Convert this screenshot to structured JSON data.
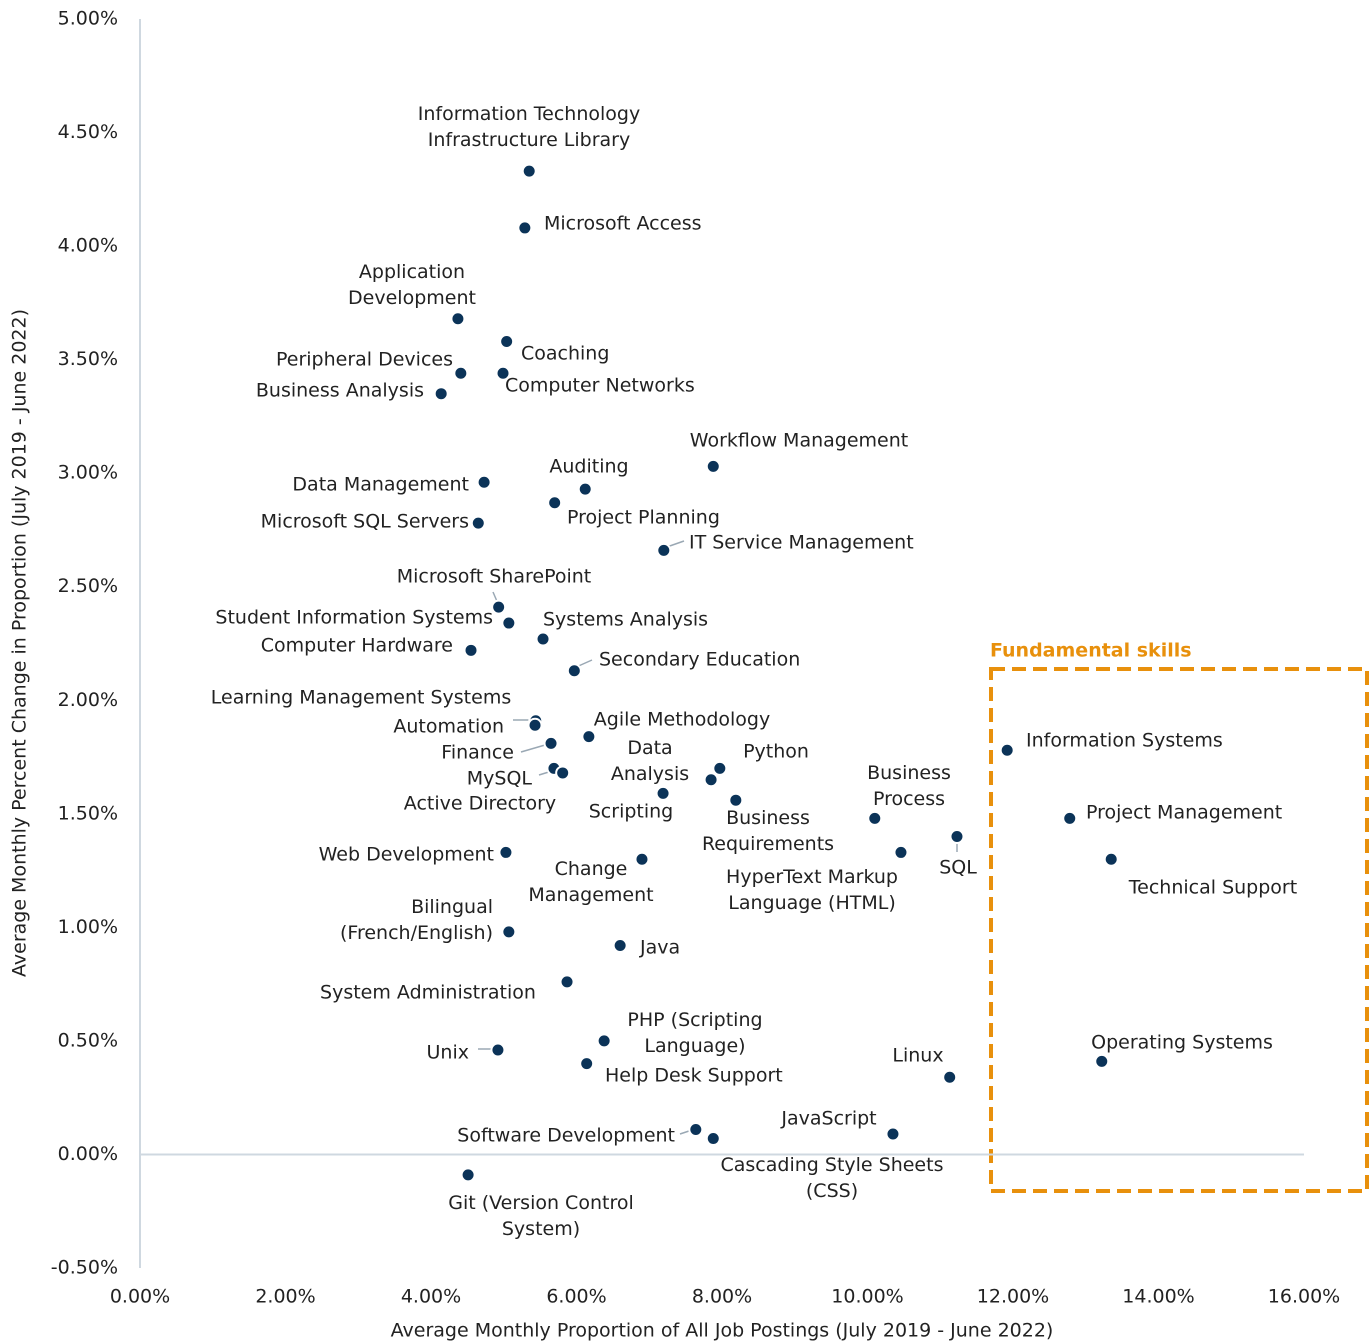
{
  "chart_data": {
    "type": "scatter",
    "xlabel": "Average Monthly Proportion of All Job Postings (July 2019 - June 2022)",
    "ylabel": "Average Monthly Percent Change in Proportion (July 2019 - June 2022)",
    "annotation": {
      "text": "Fundamental skills",
      "color": "#e8900c"
    },
    "color": "#0b3358",
    "xlim": [
      0,
      16
    ],
    "ylim": [
      -0.5,
      5
    ],
    "xticks": [
      {
        "value": 0,
        "label": "0.00%"
      },
      {
        "value": 2,
        "label": "2.00%"
      },
      {
        "value": 4,
        "label": "4.00%"
      },
      {
        "value": 6,
        "label": "6.00%"
      },
      {
        "value": 8,
        "label": "8.00%"
      },
      {
        "value": 10,
        "label": "10.00%"
      },
      {
        "value": 12,
        "label": "12.00%"
      },
      {
        "value": 14,
        "label": "14.00%"
      },
      {
        "value": 16,
        "label": "16.00%"
      }
    ],
    "yticks": [
      {
        "value": -0.5,
        "label": "-0.50%"
      },
      {
        "value": 0,
        "label": "0.00%"
      },
      {
        "value": 0.5,
        "label": "0.50%"
      },
      {
        "value": 1,
        "label": "1.00%"
      },
      {
        "value": 1.5,
        "label": "1.50%"
      },
      {
        "value": 2,
        "label": "2.00%"
      },
      {
        "value": 2.5,
        "label": "2.50%"
      },
      {
        "value": 3,
        "label": "3.00%"
      },
      {
        "value": 3.5,
        "label": "3.50%"
      },
      {
        "value": 4,
        "label": "4.00%"
      },
      {
        "value": 4.5,
        "label": "4.50%"
      },
      {
        "value": 5,
        "label": "5.00%"
      }
    ],
    "labels": [
      "Information Technology Infrastructure Library",
      "Microsoft Access",
      "Application Development",
      "Coaching",
      "Peripheral Devices",
      "Computer Networks",
      "Business Analysis",
      "Workflow Management",
      "Auditing",
      "Data Management",
      "Project Planning",
      "Microsoft SQL Servers",
      "IT Service Management",
      "Microsoft SharePoint",
      "Student Information Systems",
      "Systems Analysis",
      "Computer Hardware",
      "Secondary Education",
      "Learning Management Systems",
      "Automation",
      "Agile Methodology",
      "Finance",
      "MySQL",
      "Active Directory",
      "Python",
      "Data Analysis",
      "Scripting",
      "Business Requirements",
      "Business Process",
      "SQL",
      "HyperText Markup Language (HTML)",
      "Web Development",
      "Change Management",
      "Bilingual (French/English)",
      "Java",
      "System Administration",
      "PHP (Scripting Language)",
      "Unix",
      "Help Desk Support",
      "Linux",
      "Software Development",
      "Cascading Style Sheets (CSS)",
      "JavaScript",
      "Git (Version Control System)",
      "Information Systems",
      "Project Management",
      "Technical Support",
      "Operating Systems"
    ],
    "x": [
      5.35,
      5.29,
      4.37,
      5.04,
      4.41,
      4.99,
      4.14,
      7.88,
      6.12,
      4.73,
      5.7,
      4.65,
      7.2,
      4.93,
      5.07,
      5.54,
      4.55,
      5.97,
      5.44,
      5.43,
      6.17,
      5.65,
      5.69,
      5.81,
      7.97,
      7.85,
      7.19,
      8.19,
      10.1,
      11.23,
      10.46,
      5.03,
      6.9,
      5.07,
      6.6,
      5.87,
      6.38,
      4.92,
      6.14,
      11.13,
      7.64,
      7.88,
      10.35,
      4.51,
      11.92,
      12.78,
      13.35,
      13.22
    ],
    "y": [
      4.33,
      4.08,
      3.68,
      3.58,
      3.44,
      3.44,
      3.35,
      3.03,
      2.93,
      2.96,
      2.87,
      2.78,
      2.66,
      2.41,
      2.34,
      2.27,
      2.22,
      2.13,
      1.91,
      1.89,
      1.84,
      1.81,
      1.7,
      1.68,
      1.7,
      1.65,
      1.59,
      1.56,
      1.48,
      1.4,
      1.33,
      1.33,
      1.3,
      0.98,
      0.92,
      0.76,
      0.5,
      0.46,
      0.4,
      0.34,
      0.11,
      0.07,
      0.09,
      -0.09,
      1.78,
      1.48,
      1.3,
      0.41
    ]
  }
}
